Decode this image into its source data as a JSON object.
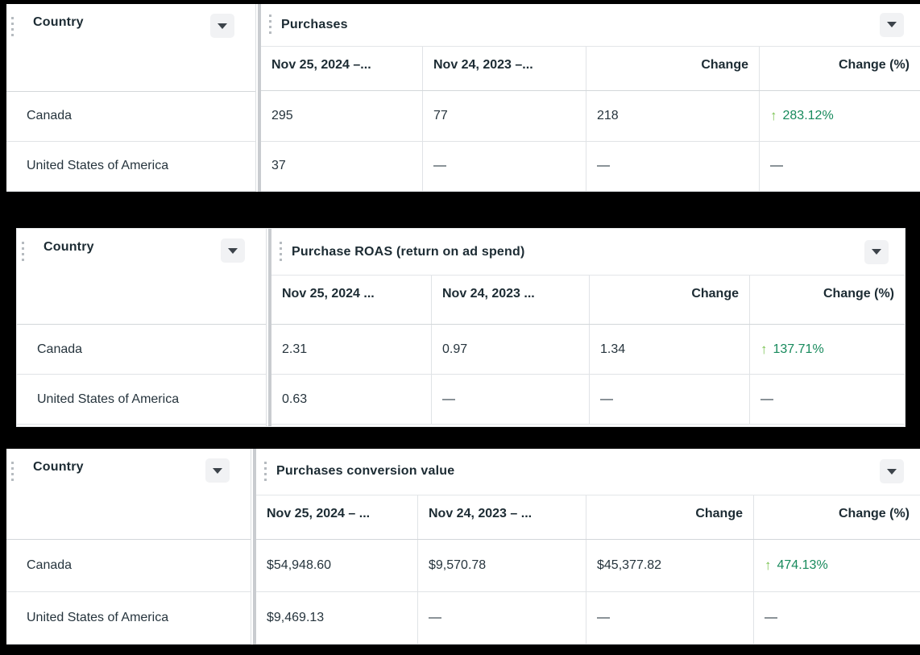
{
  "icons": {
    "up_arrow": "↑"
  },
  "colors": {
    "background": "#000000",
    "table_background": "#ffffff",
    "heading_text": "#1c2b33",
    "positive_change_text": "#178a5c",
    "positive_change_arrow": "#79c24f"
  },
  "tables": [
    {
      "dimension_label": "Country",
      "metric_label": "Purchases",
      "columns": [
        "Nov 25, 2024 –...",
        "Nov 24, 2023 –...",
        "Change",
        "Change (%)"
      ],
      "rows": [
        {
          "country": "Canada",
          "current": "295",
          "previous": "77",
          "change": "218",
          "change_pct": "283.12%",
          "trend": "up"
        },
        {
          "country": "United States of America",
          "current": "37",
          "previous": "—",
          "change": "—",
          "change_pct": "—",
          "trend": "none"
        }
      ]
    },
    {
      "dimension_label": "Country",
      "metric_label": "Purchase ROAS (return on ad spend)",
      "columns": [
        "Nov 25, 2024 ...",
        "Nov 24, 2023 ...",
        "Change",
        "Change (%)"
      ],
      "rows": [
        {
          "country": "Canada",
          "current": "2.31",
          "previous": "0.97",
          "change": "1.34",
          "change_pct": "137.71%",
          "trend": "up"
        },
        {
          "country": "United States of America",
          "current": "0.63",
          "previous": "—",
          "change": "—",
          "change_pct": "—",
          "trend": "none"
        }
      ]
    },
    {
      "dimension_label": "Country",
      "metric_label": "Purchases conversion value",
      "columns": [
        "Nov 25, 2024 – ...",
        "Nov 24, 2023 – ...",
        "Change",
        "Change (%)"
      ],
      "rows": [
        {
          "country": "Canada",
          "current": "$54,948.60",
          "previous": "$9,570.78",
          "change": "$45,377.82",
          "change_pct": "474.13%",
          "trend": "up"
        },
        {
          "country": "United States of America",
          "current": "$9,469.13",
          "previous": "—",
          "change": "—",
          "change_pct": "—",
          "trend": "none"
        }
      ]
    }
  ]
}
